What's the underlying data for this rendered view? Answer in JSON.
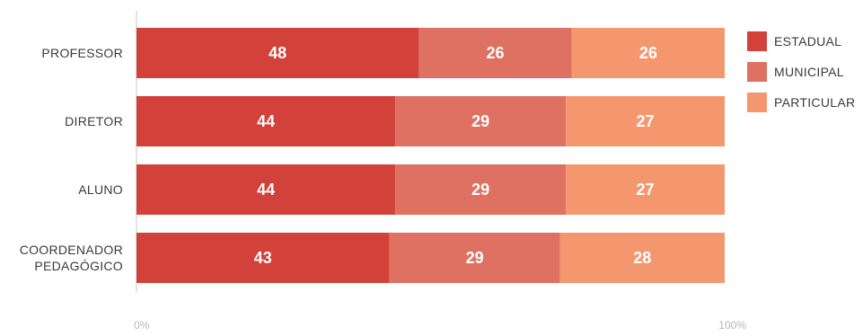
{
  "chart_data": {
    "type": "bar",
    "orientation": "horizontal",
    "stacked": true,
    "percent": true,
    "categories": [
      [
        "PROFESSOR"
      ],
      [
        "DIRETOR"
      ],
      [
        "ALUNO"
      ],
      [
        "COORDENADOR",
        "PEDAGÓGICO"
      ]
    ],
    "series": [
      {
        "name": "ESTADUAL",
        "values": [
          48,
          44,
          44,
          43
        ],
        "color": "#d2413a"
      },
      {
        "name": "MUNICIPAL",
        "values": [
          26,
          29,
          29,
          29
        ],
        "color": "#de7161"
      },
      {
        "name": "PARTICULAR",
        "values": [
          26,
          27,
          27,
          28
        ],
        "color": "#f4976f"
      }
    ],
    "xlim": [
      0,
      100
    ],
    "xticks": [
      0,
      100
    ],
    "xtick_labels": [
      "0%",
      "100%"
    ],
    "grid": false,
    "legend_position": "right"
  }
}
